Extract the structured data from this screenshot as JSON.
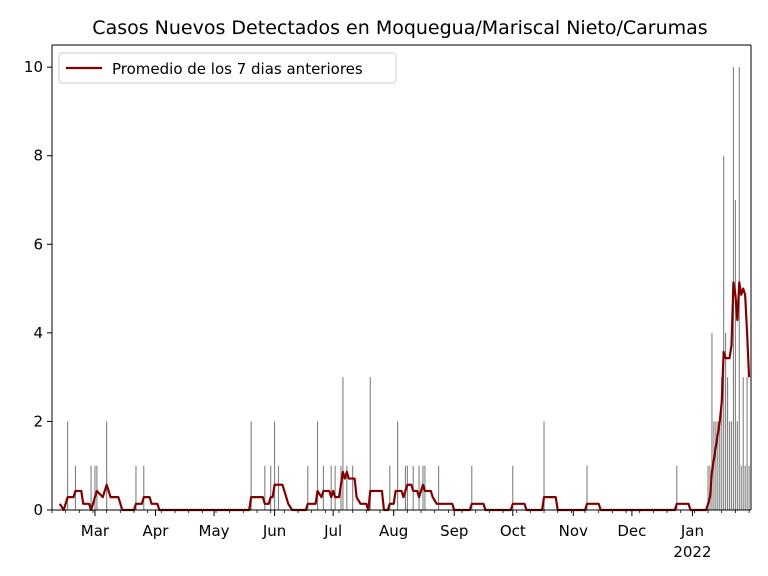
{
  "chart_data": {
    "type": "bar",
    "title": "Casos Nuevos Detectados en Moquegua/Mariscal Nieto/Carumas",
    "xlabel": "",
    "ylabel": "",
    "x_start": "2021-02-07",
    "x_end": "2022-01-31",
    "ylim": [
      0,
      10.5
    ],
    "y_ticks": [
      0,
      2,
      4,
      6,
      8,
      10
    ],
    "x_ticks": [
      {
        "date": "2021-03-01",
        "label": "Mar"
      },
      {
        "date": "2021-04-01",
        "label": "Apr"
      },
      {
        "date": "2021-05-01",
        "label": "May"
      },
      {
        "date": "2021-06-01",
        "label": "Jun"
      },
      {
        "date": "2021-07-01",
        "label": "Jul"
      },
      {
        "date": "2021-08-01",
        "label": "Aug"
      },
      {
        "date": "2021-09-01",
        "label": "Sep"
      },
      {
        "date": "2021-10-01",
        "label": "Oct"
      },
      {
        "date": "2021-11-01",
        "label": "Nov"
      },
      {
        "date": "2021-12-01",
        "label": "Dec"
      },
      {
        "date": "2022-01-01",
        "label": "Jan",
        "sublabel": "2022"
      }
    ],
    "grid": false,
    "legend_position": "top-left",
    "series": [
      {
        "name": "",
        "kind": "bar",
        "color": "#808080",
        "points": [
          [
            "2021-02-15",
            2
          ],
          [
            "2021-02-19",
            1
          ],
          [
            "2021-02-27",
            1
          ],
          [
            "2021-03-01",
            1
          ],
          [
            "2021-03-02",
            1
          ],
          [
            "2021-03-07",
            2
          ],
          [
            "2021-03-22",
            1
          ],
          [
            "2021-03-26",
            1
          ],
          [
            "2021-05-20",
            2
          ],
          [
            "2021-05-27",
            1
          ],
          [
            "2021-05-30",
            1
          ],
          [
            "2021-06-01",
            2
          ],
          [
            "2021-06-03",
            1
          ],
          [
            "2021-06-18",
            1
          ],
          [
            "2021-06-23",
            2
          ],
          [
            "2021-06-26",
            1
          ],
          [
            "2021-06-30",
            1
          ],
          [
            "2021-07-02",
            1
          ],
          [
            "2021-07-05",
            1
          ],
          [
            "2021-07-06",
            3
          ],
          [
            "2021-07-08",
            1
          ],
          [
            "2021-07-11",
            1
          ],
          [
            "2021-07-20",
            3
          ],
          [
            "2021-07-30",
            1
          ],
          [
            "2021-08-03",
            2
          ],
          [
            "2021-08-07",
            1
          ],
          [
            "2021-08-08",
            1
          ],
          [
            "2021-08-11",
            1
          ],
          [
            "2021-08-14",
            1
          ],
          [
            "2021-08-16",
            1
          ],
          [
            "2021-08-17",
            1
          ],
          [
            "2021-08-24",
            1
          ],
          [
            "2021-09-10",
            1
          ],
          [
            "2021-10-01",
            1
          ],
          [
            "2021-10-17",
            2
          ],
          [
            "2021-11-08",
            1
          ],
          [
            "2021-12-24",
            1
          ],
          [
            "2022-01-09",
            1
          ],
          [
            "2022-01-10",
            1
          ],
          [
            "2022-01-11",
            4
          ],
          [
            "2022-01-12",
            2
          ],
          [
            "2022-01-13",
            2
          ],
          [
            "2022-01-14",
            2
          ],
          [
            "2022-01-15",
            2
          ],
          [
            "2022-01-16",
            3
          ],
          [
            "2022-01-17",
            8
          ],
          [
            "2022-01-18",
            4
          ],
          [
            "2022-01-19",
            3
          ],
          [
            "2022-01-20",
            2
          ],
          [
            "2022-01-21",
            2
          ],
          [
            "2022-01-22",
            10
          ],
          [
            "2022-01-23",
            7
          ],
          [
            "2022-01-24",
            2
          ],
          [
            "2022-01-25",
            10
          ],
          [
            "2022-01-26",
            1
          ],
          [
            "2022-01-27",
            3
          ],
          [
            "2022-01-28",
            1
          ],
          [
            "2022-01-29",
            3
          ],
          [
            "2022-01-30",
            1
          ]
        ]
      },
      {
        "name": "Promedio de los 7 dias anteriores",
        "kind": "line",
        "color": "#800000",
        "points": [
          [
            "2021-02-11",
            0.14
          ],
          [
            "2021-02-13",
            0.0
          ],
          [
            "2021-02-15",
            0.29
          ],
          [
            "2021-02-18",
            0.29
          ],
          [
            "2021-02-19",
            0.43
          ],
          [
            "2021-02-22",
            0.43
          ],
          [
            "2021-02-23",
            0.14
          ],
          [
            "2021-02-26",
            0.14
          ],
          [
            "2021-02-27",
            0.0
          ],
          [
            "2021-02-28",
            0.14
          ],
          [
            "2021-03-01",
            0.29
          ],
          [
            "2021-03-02",
            0.43
          ],
          [
            "2021-03-05",
            0.29
          ],
          [
            "2021-03-07",
            0.57
          ],
          [
            "2021-03-09",
            0.29
          ],
          [
            "2021-03-13",
            0.29
          ],
          [
            "2021-03-15",
            0.0
          ],
          [
            "2021-03-21",
            0.0
          ],
          [
            "2021-03-22",
            0.14
          ],
          [
            "2021-03-25",
            0.14
          ],
          [
            "2021-03-26",
            0.29
          ],
          [
            "2021-03-29",
            0.29
          ],
          [
            "2021-03-30",
            0.14
          ],
          [
            "2021-04-02",
            0.14
          ],
          [
            "2021-04-03",
            0.0
          ],
          [
            "2021-05-19",
            0.0
          ],
          [
            "2021-05-20",
            0.29
          ],
          [
            "2021-05-26",
            0.29
          ],
          [
            "2021-05-27",
            0.14
          ],
          [
            "2021-05-29",
            0.14
          ],
          [
            "2021-05-30",
            0.29
          ],
          [
            "2021-05-31",
            0.29
          ],
          [
            "2021-06-01",
            0.57
          ],
          [
            "2021-06-05",
            0.57
          ],
          [
            "2021-06-06",
            0.43
          ],
          [
            "2021-06-08",
            0.14
          ],
          [
            "2021-06-10",
            0.0
          ],
          [
            "2021-06-17",
            0.0
          ],
          [
            "2021-06-18",
            0.14
          ],
          [
            "2021-06-22",
            0.14
          ],
          [
            "2021-06-23",
            0.43
          ],
          [
            "2021-06-25",
            0.29
          ],
          [
            "2021-06-26",
            0.43
          ],
          [
            "2021-06-29",
            0.43
          ],
          [
            "2021-06-30",
            0.29
          ],
          [
            "2021-07-01",
            0.43
          ],
          [
            "2021-07-02",
            0.29
          ],
          [
            "2021-07-04",
            0.29
          ],
          [
            "2021-07-05",
            0.57
          ],
          [
            "2021-07-06",
            0.86
          ],
          [
            "2021-07-07",
            0.71
          ],
          [
            "2021-07-08",
            0.86
          ],
          [
            "2021-07-09",
            0.71
          ],
          [
            "2021-07-12",
            0.71
          ],
          [
            "2021-07-13",
            0.29
          ],
          [
            "2021-07-15",
            0.14
          ],
          [
            "2021-07-18",
            0.14
          ],
          [
            "2021-07-19",
            0.0
          ],
          [
            "2021-07-20",
            0.43
          ],
          [
            "2021-07-26",
            0.43
          ],
          [
            "2021-07-27",
            0.0
          ],
          [
            "2021-07-29",
            0.0
          ],
          [
            "2021-07-30",
            0.14
          ],
          [
            "2021-08-01",
            0.14
          ],
          [
            "2021-08-02",
            0.43
          ],
          [
            "2021-08-05",
            0.43
          ],
          [
            "2021-08-06",
            0.29
          ],
          [
            "2021-08-07",
            0.43
          ],
          [
            "2021-08-08",
            0.57
          ],
          [
            "2021-08-10",
            0.57
          ],
          [
            "2021-08-11",
            0.43
          ],
          [
            "2021-08-13",
            0.43
          ],
          [
            "2021-08-14",
            0.29
          ],
          [
            "2021-08-15",
            0.43
          ],
          [
            "2021-08-16",
            0.57
          ],
          [
            "2021-08-17",
            0.43
          ],
          [
            "2021-08-20",
            0.43
          ],
          [
            "2021-08-21",
            0.29
          ],
          [
            "2021-08-23",
            0.14
          ],
          [
            "2021-08-26",
            0.14
          ],
          [
            "2021-08-31",
            0.14
          ],
          [
            "2021-09-01",
            0.0
          ],
          [
            "2021-09-09",
            0.0
          ],
          [
            "2021-09-10",
            0.14
          ],
          [
            "2021-09-16",
            0.14
          ],
          [
            "2021-09-17",
            0.0
          ],
          [
            "2021-09-30",
            0.0
          ],
          [
            "2021-10-01",
            0.14
          ],
          [
            "2021-10-07",
            0.14
          ],
          [
            "2021-10-08",
            0.0
          ],
          [
            "2021-10-16",
            0.0
          ],
          [
            "2021-10-17",
            0.29
          ],
          [
            "2021-10-23",
            0.29
          ],
          [
            "2021-10-24",
            0.0
          ],
          [
            "2021-11-07",
            0.0
          ],
          [
            "2021-11-08",
            0.14
          ],
          [
            "2021-11-14",
            0.14
          ],
          [
            "2021-11-15",
            0.0
          ],
          [
            "2021-12-23",
            0.0
          ],
          [
            "2021-12-24",
            0.14
          ],
          [
            "2021-12-30",
            0.14
          ],
          [
            "2021-12-31",
            0.0
          ],
          [
            "2022-01-08",
            0.0
          ],
          [
            "2022-01-09",
            0.14
          ],
          [
            "2022-01-10",
            0.29
          ],
          [
            "2022-01-11",
            0.86
          ],
          [
            "2022-01-13",
            1.43
          ],
          [
            "2022-01-15",
            2.0
          ],
          [
            "2022-01-16",
            2.43
          ],
          [
            "2022-01-17",
            3.57
          ],
          [
            "2022-01-18",
            3.43
          ],
          [
            "2022-01-20",
            3.43
          ],
          [
            "2022-01-21",
            3.71
          ],
          [
            "2022-01-22",
            5.14
          ],
          [
            "2022-01-23",
            4.86
          ],
          [
            "2022-01-24",
            4.29
          ],
          [
            "2022-01-25",
            5.14
          ],
          [
            "2022-01-26",
            4.86
          ],
          [
            "2022-01-27",
            5.0
          ],
          [
            "2022-01-28",
            4.86
          ],
          [
            "2022-01-29",
            4.0
          ],
          [
            "2022-01-30",
            3.0
          ]
        ]
      }
    ]
  }
}
